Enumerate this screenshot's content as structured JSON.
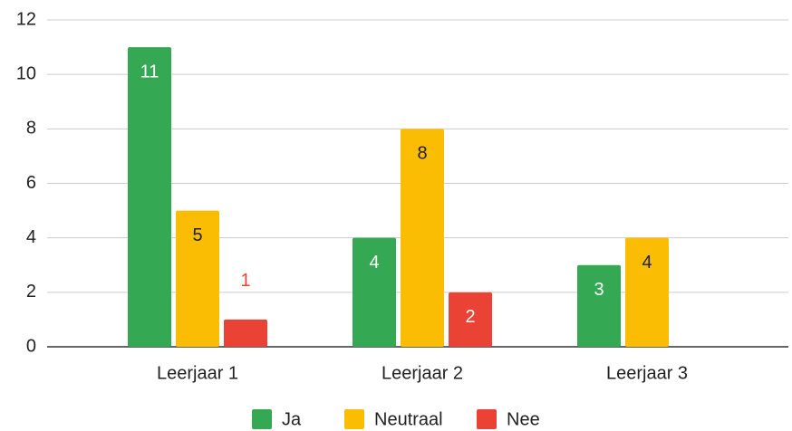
{
  "chart_data": {
    "type": "bar",
    "categories": [
      "Leerjaar 1",
      "Leerjaar 2",
      "Leerjaar 3"
    ],
    "series": [
      {
        "name": "Ja",
        "color": "#34a853",
        "values": [
          11,
          4,
          3
        ]
      },
      {
        "name": "Neutraal",
        "color": "#fbbc04",
        "values": [
          5,
          8,
          4
        ]
      },
      {
        "name": "Nee",
        "color": "#ea4335",
        "values": [
          1,
          2,
          null
        ]
      }
    ],
    "ylim": [
      0,
      12
    ],
    "yticks": [
      0,
      2,
      4,
      6,
      8,
      10,
      12
    ],
    "grid": true,
    "legend": "bottom"
  }
}
